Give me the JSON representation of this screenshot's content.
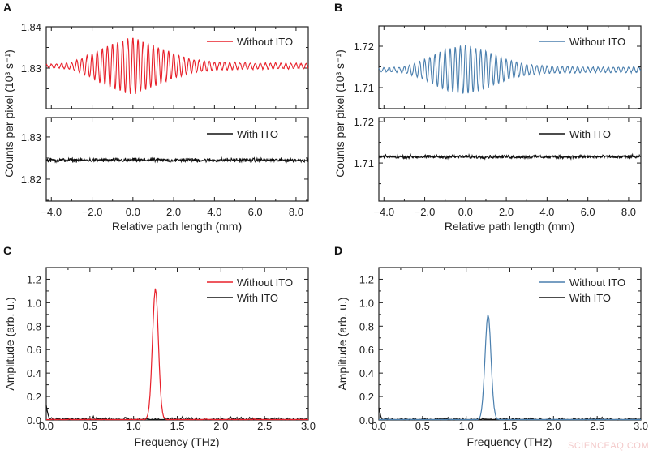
{
  "watermark": "SCIENCEAQ.COM",
  "colors": {
    "red": "#e8202a",
    "blue": "#4a7fae",
    "black": "#111111"
  },
  "chart_data": [
    {
      "panel": "A",
      "type": "line",
      "xlabel": "Relative path length (mm)",
      "ylabel": "Counts per pixel (10³ s⁻¹)",
      "xlim": [
        -4.25,
        8.6
      ],
      "xticks": [
        "-4.0",
        "-2.0",
        "0.0",
        "2.0",
        "4.0",
        "6.0",
        "8.0"
      ],
      "grid": false,
      "subplots": [
        {
          "ylim": [
            1.8202,
            1.84
          ],
          "yticks": [
            "1.83",
            "1.84"
          ],
          "legend": "top-right",
          "series": [
            {
              "name": "Without ITO",
              "color": "#e8202a",
              "kind": "interferogram",
              "baseline": 1.8305,
              "fringe_period_mm": 0.25,
              "center_mm": 0.0,
              "envelope": [
                [
                  -4.25,
                  0.0003
                ],
                [
                  -3,
                  0.0008
                ],
                [
                  -2,
                  0.003
                ],
                [
                  -1,
                  0.0055
                ],
                [
                  0,
                  0.007
                ],
                [
                  1,
                  0.005
                ],
                [
                  2,
                  0.003
                ],
                [
                  3,
                  0.0015
                ],
                [
                  4,
                  0.001
                ],
                [
                  6,
                  0.0007
                ],
                [
                  8.6,
                  0.0006
                ]
              ]
            }
          ]
        },
        {
          "ylim": [
            1.8148,
            1.8346
          ],
          "yticks": [
            "1.82",
            "1.83"
          ],
          "legend": "top-right",
          "series": [
            {
              "name": "With ITO",
              "color": "#111111",
              "kind": "noise",
              "baseline": 1.8245,
              "noise_amplitude": 0.0007
            }
          ]
        }
      ]
    },
    {
      "panel": "B",
      "type": "line",
      "xlabel": "Relative path length (mm)",
      "ylabel": "Counts per pixel (10³ s⁻¹)",
      "xlim": [
        -4.25,
        8.6
      ],
      "xticks": [
        "-4.0",
        "-2.0",
        "0.0",
        "2.0",
        "4.0",
        "6.0",
        "8.0"
      ],
      "grid": false,
      "subplots": [
        {
          "ylim": [
            1.7049,
            1.7249
          ],
          "yticks": [
            "1.71",
            "1.72"
          ],
          "legend": "top-right",
          "series": [
            {
              "name": "Without ITO",
              "color": "#4a7fae",
              "kind": "interferogram",
              "baseline": 1.7143,
              "fringe_period_mm": 0.25,
              "center_mm": 0.0,
              "envelope": [
                [
                  -4.25,
                  0.0003
                ],
                [
                  -3,
                  0.0007
                ],
                [
                  -2,
                  0.0025
                ],
                [
                  -1,
                  0.005
                ],
                [
                  0,
                  0.006
                ],
                [
                  1,
                  0.0045
                ],
                [
                  2,
                  0.0025
                ],
                [
                  3,
                  0.0013
                ],
                [
                  4,
                  0.0009
                ],
                [
                  6,
                  0.0006
                ],
                [
                  8.6,
                  0.0006
                ]
              ]
            }
          ]
        },
        {
          "ylim": [
            1.7008,
            1.721
          ],
          "yticks": [
            "1.71",
            "1.72"
          ],
          "legend": "top-right",
          "series": [
            {
              "name": "With ITO",
              "color": "#111111",
              "kind": "noise",
              "baseline": 1.7115,
              "noise_amplitude": 0.0006
            }
          ]
        }
      ]
    },
    {
      "panel": "C",
      "type": "line",
      "xlabel": "Frequency (THz)",
      "ylabel": "Amplitude (arb. u.)",
      "xlim": [
        0,
        3.0
      ],
      "ylim": [
        0,
        1.3
      ],
      "xticks": [
        "0.0",
        "0.5",
        "1.0",
        "1.5",
        "2.0",
        "2.5",
        "3.0"
      ],
      "yticks": [
        "0.0",
        "0.2",
        "0.4",
        "0.6",
        "0.8",
        "1.0",
        "1.2"
      ],
      "grid": false,
      "legend": "top-right",
      "series": [
        {
          "name": "Without ITO",
          "color": "#e8202a",
          "kind": "spectrum",
          "peak_thz": 1.25,
          "peak_amplitude": 1.12,
          "fwhm_thz": 0.08,
          "noise_floor": 0.015
        },
        {
          "name": "With ITO",
          "color": "#111111",
          "kind": "spectrum",
          "peak_thz": 0.0,
          "peak_amplitude": 0.11,
          "fwhm_thz": 0.03,
          "noise_floor": 0.04
        }
      ]
    },
    {
      "panel": "D",
      "type": "line",
      "xlabel": "Frequency (THz)",
      "ylabel": "Amplitude (arb. u.)",
      "xlim": [
        0,
        3.0
      ],
      "ylim": [
        0,
        1.3
      ],
      "xticks": [
        "0.0",
        "0.5",
        "1.0",
        "1.5",
        "2.0",
        "2.5",
        "3.0"
      ],
      "yticks": [
        "0.0",
        "0.2",
        "0.4",
        "0.6",
        "0.8",
        "1.0",
        "1.2"
      ],
      "grid": false,
      "legend": "top-right",
      "series": [
        {
          "name": "Without ITO",
          "color": "#4a7fae",
          "kind": "spectrum",
          "peak_thz": 1.25,
          "peak_amplitude": 0.9,
          "fwhm_thz": 0.08,
          "noise_floor": 0.012
        },
        {
          "name": "With ITO",
          "color": "#111111",
          "kind": "spectrum",
          "peak_thz": 0.0,
          "peak_amplitude": 0.1,
          "fwhm_thz": 0.03,
          "noise_floor": 0.035
        }
      ]
    }
  ]
}
